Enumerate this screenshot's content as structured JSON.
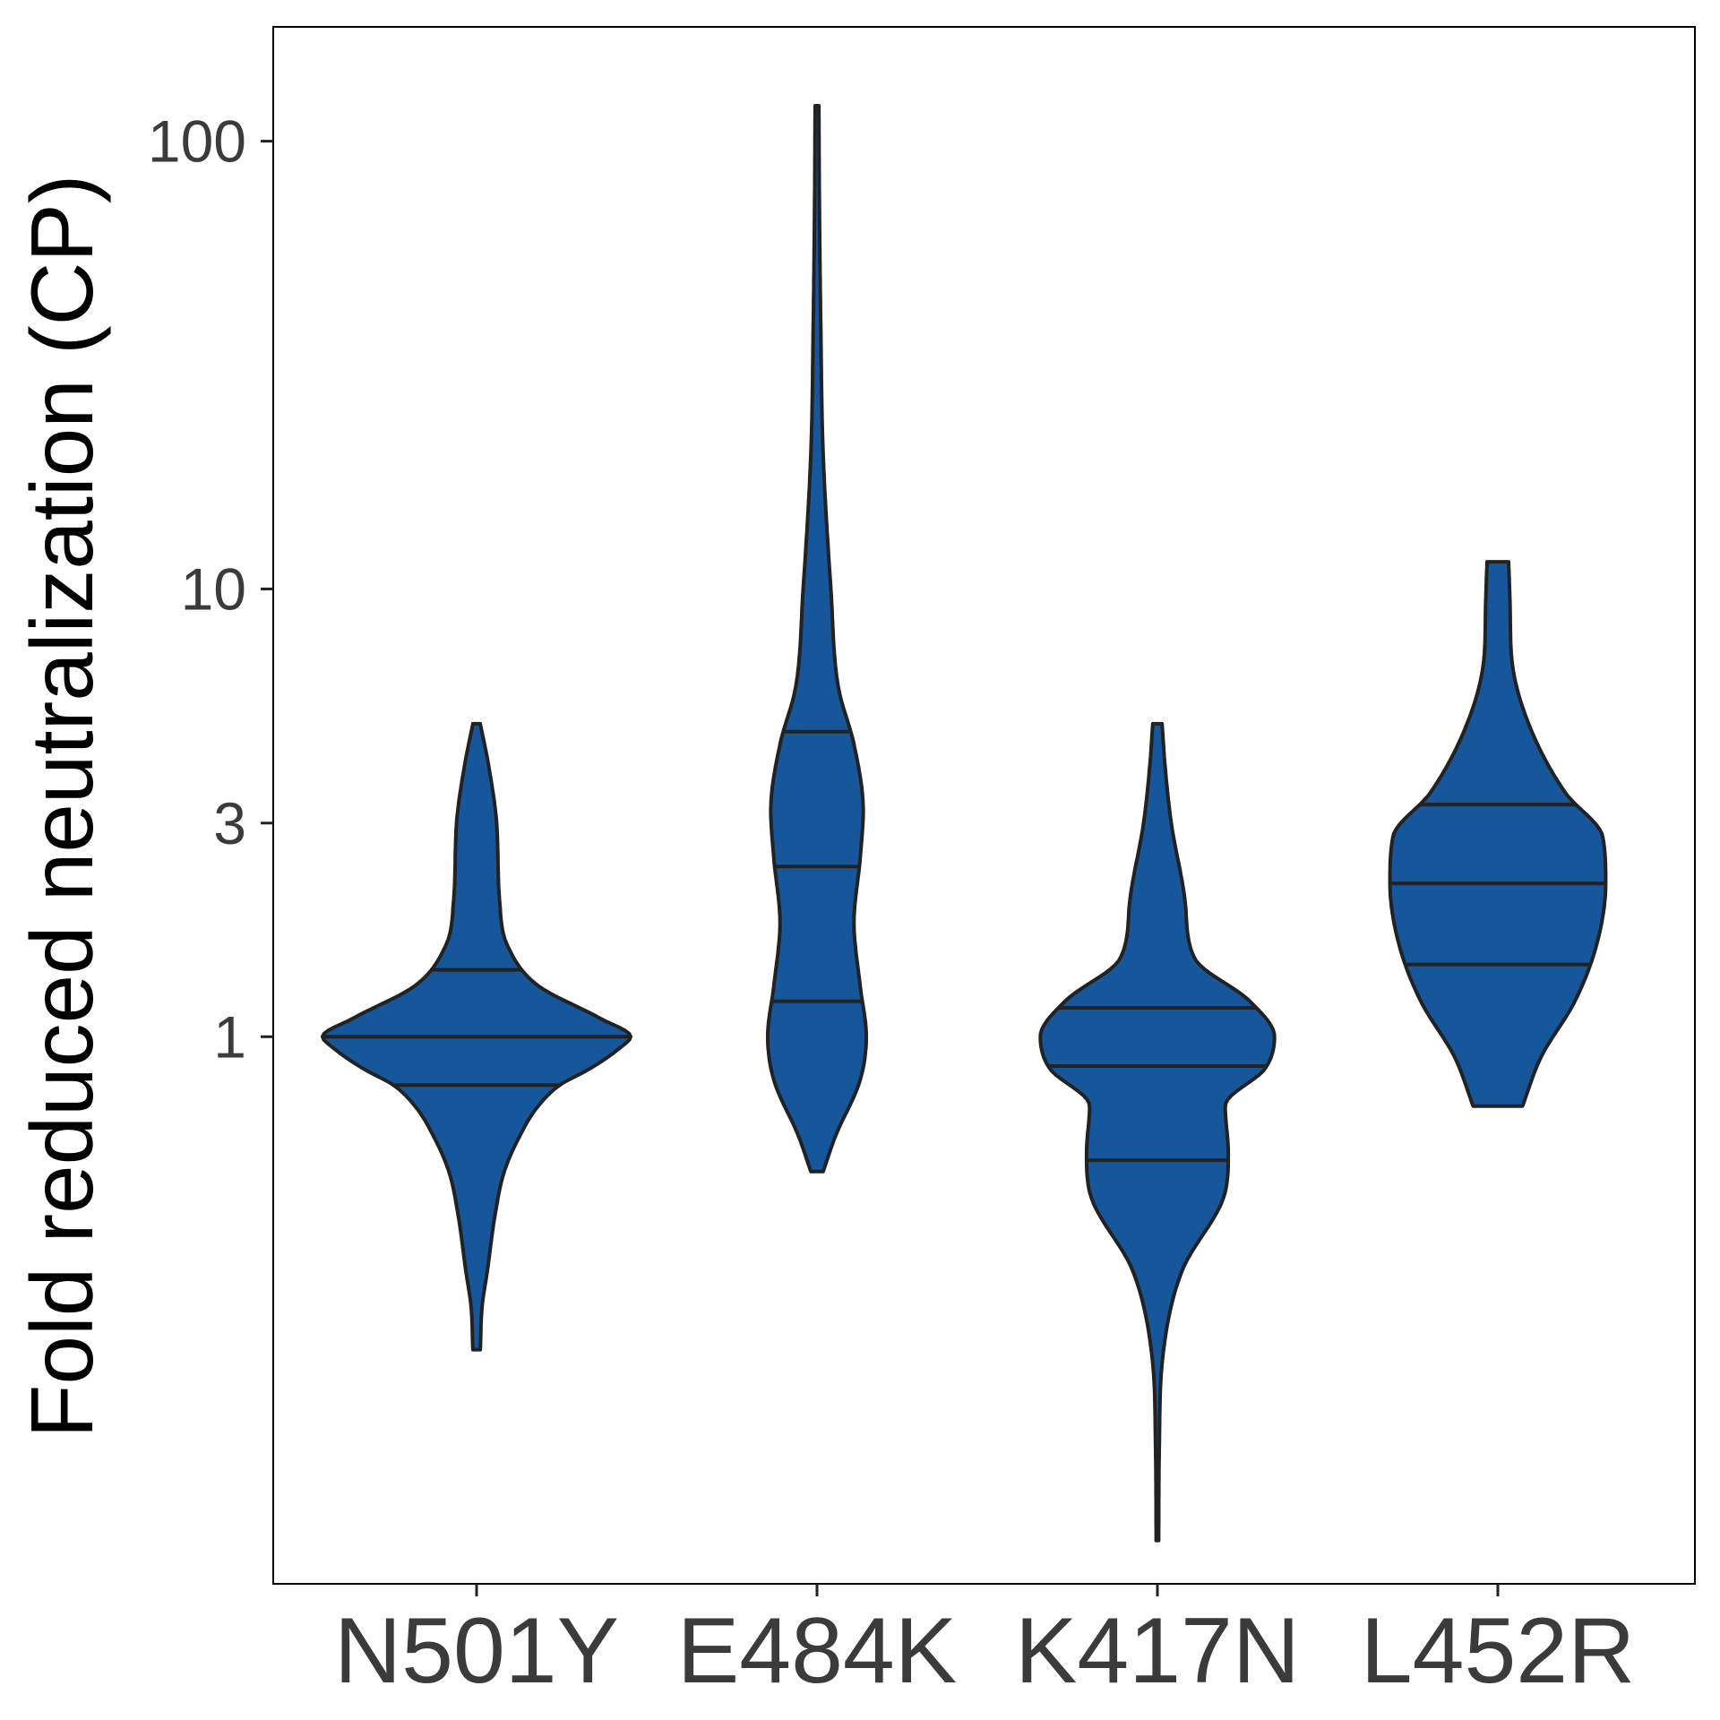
{
  "chart_data": {
    "type": "violin",
    "ylabel": "Fold reduced neutralization (CP)",
    "xlabel": "",
    "y_scale": "log10",
    "ylim": [
      0.06,
      180
    ],
    "yticks": [
      1,
      3,
      10,
      100
    ],
    "ytick_labels": [
      "1",
      "3",
      "10",
      "100"
    ],
    "categories": [
      "N501Y",
      "E484K",
      "K417N",
      "L452R"
    ],
    "grid": false,
    "legend": "none",
    "fill_color": "#16569A",
    "outline_color": "#222222",
    "violins": [
      {
        "name": "N501Y",
        "min": 0.2,
        "max": 5.0,
        "quantiles": [
          0.78,
          1.0,
          1.41
        ],
        "density": [
          [
            0.2,
            0.012
          ],
          [
            0.25,
            0.018
          ],
          [
            0.3,
            0.035
          ],
          [
            0.4,
            0.06
          ],
          [
            0.5,
            0.09
          ],
          [
            0.6,
            0.14
          ],
          [
            0.7,
            0.2
          ],
          [
            0.78,
            0.27
          ],
          [
            0.85,
            0.37
          ],
          [
            0.95,
            0.47
          ],
          [
            1.0,
            0.5
          ],
          [
            1.1,
            0.4
          ],
          [
            1.3,
            0.2
          ],
          [
            1.6,
            0.1
          ],
          [
            2.0,
            0.075
          ],
          [
            3.0,
            0.065
          ],
          [
            4.0,
            0.04
          ],
          [
            5.0,
            0.012
          ]
        ]
      },
      {
        "name": "E484K",
        "min": 0.5,
        "max": 120,
        "quantiles": [
          1.2,
          2.4,
          4.8
        ],
        "density": [
          [
            0.5,
            0.02
          ],
          [
            0.6,
            0.06
          ],
          [
            0.8,
            0.14
          ],
          [
            1.0,
            0.16
          ],
          [
            1.3,
            0.14
          ],
          [
            1.8,
            0.12
          ],
          [
            2.5,
            0.14
          ],
          [
            3.2,
            0.15
          ],
          [
            4.5,
            0.12
          ],
          [
            6.0,
            0.07
          ],
          [
            10,
            0.045
          ],
          [
            20,
            0.02
          ],
          [
            40,
            0.012
          ],
          [
            70,
            0.008
          ],
          [
            120,
            0.006
          ]
        ]
      },
      {
        "name": "K417N",
        "min": 0.075,
        "max": 5.0,
        "quantiles": [
          0.53,
          0.86,
          1.16
        ],
        "density": [
          [
            0.075,
            0.004
          ],
          [
            0.12,
            0.006
          ],
          [
            0.2,
            0.02
          ],
          [
            0.3,
            0.08
          ],
          [
            0.45,
            0.22
          ],
          [
            0.55,
            0.23
          ],
          [
            0.7,
            0.22
          ],
          [
            0.85,
            0.35
          ],
          [
            1.0,
            0.38
          ],
          [
            1.2,
            0.3
          ],
          [
            1.5,
            0.12
          ],
          [
            2.0,
            0.09
          ],
          [
            3.0,
            0.045
          ],
          [
            4.0,
            0.025
          ],
          [
            5.0,
            0.015
          ]
        ]
      },
      {
        "name": "L452R",
        "min": 0.7,
        "max": 11.5,
        "quantiles": [
          1.45,
          2.2,
          3.3
        ],
        "density": [
          [
            0.7,
            0.08
          ],
          [
            0.9,
            0.14
          ],
          [
            1.2,
            0.25
          ],
          [
            1.6,
            0.32
          ],
          [
            2.2,
            0.35
          ],
          [
            2.8,
            0.34
          ],
          [
            3.5,
            0.22
          ],
          [
            5.0,
            0.1
          ],
          [
            7.0,
            0.045
          ],
          [
            9.0,
            0.04
          ],
          [
            11.5,
            0.035
          ]
        ]
      }
    ]
  }
}
